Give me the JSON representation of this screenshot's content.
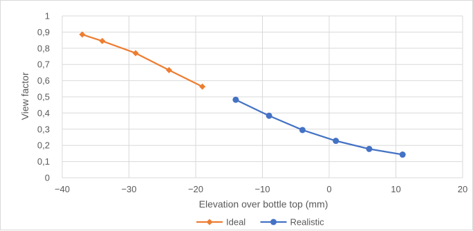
{
  "chart_data": {
    "type": "line",
    "title": "",
    "xlabel": "Elevation over bottle top (mm)",
    "ylabel": "View factor",
    "xlim": [
      -40,
      20
    ],
    "ylim": [
      0,
      1
    ],
    "x_ticks": [
      -40,
      -30,
      -20,
      -10,
      0,
      10,
      20
    ],
    "y_ticks": [
      0,
      0.1,
      0.2,
      0.3,
      0.4,
      0.5,
      0.6,
      0.7,
      0.8,
      0.9,
      1
    ],
    "x_tick_labels": [
      "−40",
      "−30",
      "−20",
      "−10",
      "0",
      "10",
      "20"
    ],
    "y_tick_labels": [
      "0",
      "0,1",
      "0,2",
      "0,3",
      "0,4",
      "0,5",
      "0,6",
      "0,7",
      "0,8",
      "0,9",
      "1"
    ],
    "grid": true,
    "legend_position": "bottom",
    "series": [
      {
        "name": "Ideal",
        "color": "#ED7D31",
        "marker": "diamond",
        "points": [
          {
            "x": -37,
            "y": 0.885
          },
          {
            "x": -34,
            "y": 0.845
          },
          {
            "x": -29,
            "y": 0.77
          },
          {
            "x": -24,
            "y": 0.665
          },
          {
            "x": -19,
            "y": 0.563
          }
        ]
      },
      {
        "name": "Realistic",
        "color": "#4472C4",
        "marker": "circle",
        "points": [
          {
            "x": -14,
            "y": 0.482
          },
          {
            "x": -9,
            "y": 0.383
          },
          {
            "x": -4,
            "y": 0.295
          },
          {
            "x": 1,
            "y": 0.228
          },
          {
            "x": 6,
            "y": 0.178
          },
          {
            "x": 11,
            "y": 0.143
          }
        ]
      }
    ]
  }
}
